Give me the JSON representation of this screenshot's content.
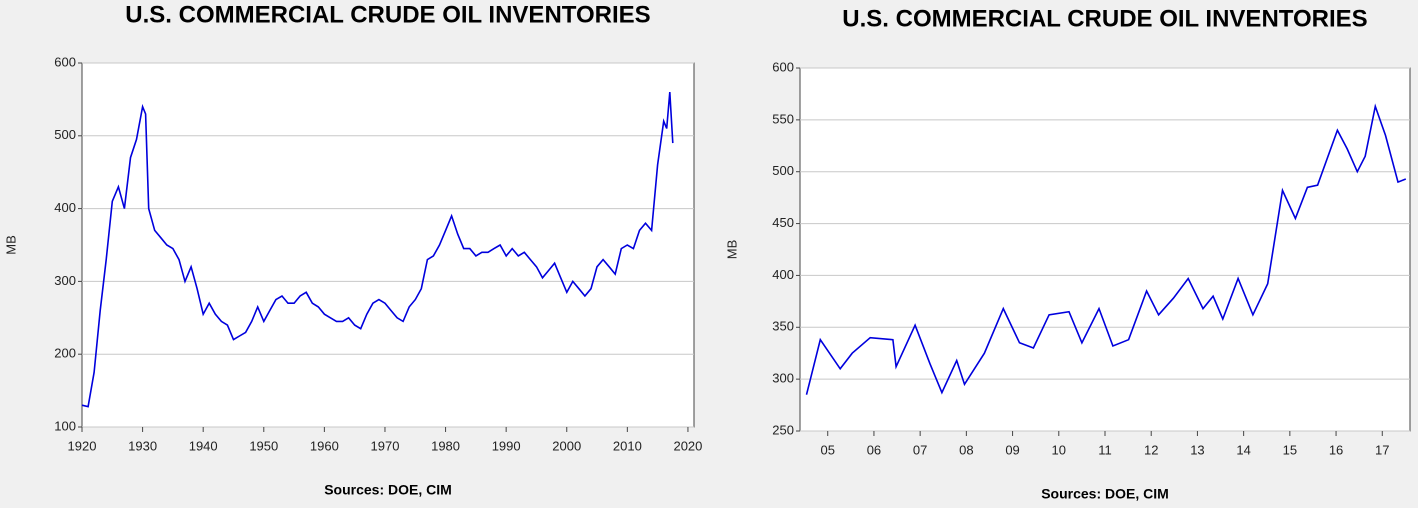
{
  "chart_data": [
    {
      "type": "line",
      "title": "U.S. COMMERCIAL CRUDE OIL INVENTORIES",
      "source": "Sources:  DOE, CIM",
      "ylabel": "MB",
      "color": "#0000dd",
      "grid": true,
      "xlim": [
        1920,
        2021
      ],
      "xticks": [
        1920,
        1930,
        1940,
        1950,
        1960,
        1970,
        1980,
        1990,
        2000,
        2010,
        2020
      ],
      "ylim": [
        100,
        600
      ],
      "yticks": [
        100,
        200,
        300,
        400,
        500,
        600
      ],
      "x": [
        1920,
        1921,
        1922,
        1923,
        1924,
        1925,
        1926,
        1927,
        1928,
        1929,
        1930,
        1930.5,
        1931,
        1932,
        1933,
        1934,
        1935,
        1936,
        1937,
        1938,
        1939,
        1940,
        1941,
        1942,
        1943,
        1944,
        1945,
        1946,
        1947,
        1948,
        1949,
        1950,
        1951,
        1952,
        1953,
        1954,
        1955,
        1956,
        1957,
        1958,
        1959,
        1960,
        1961,
        1962,
        1963,
        1964,
        1965,
        1966,
        1967,
        1968,
        1969,
        1970,
        1971,
        1972,
        1973,
        1974,
        1975,
        1976,
        1977,
        1978,
        1979,
        1980,
        1981,
        1982,
        1983,
        1984,
        1985,
        1986,
        1987,
        1988,
        1989,
        1990,
        1991,
        1992,
        1993,
        1994,
        1995,
        1996,
        1997,
        1998,
        1999,
        2000,
        2001,
        2002,
        2003,
        2004,
        2005,
        2006,
        2007,
        2008,
        2009,
        2010,
        2011,
        2012,
        2013,
        2014,
        2015,
        2016,
        2016.5,
        2017,
        2017.5
      ],
      "values": [
        130,
        128,
        175,
        260,
        330,
        410,
        430,
        400,
        470,
        495,
        540,
        530,
        400,
        370,
        360,
        350,
        345,
        330,
        300,
        320,
        290,
        255,
        270,
        255,
        245,
        240,
        220,
        225,
        230,
        245,
        265,
        245,
        260,
        275,
        280,
        270,
        270,
        280,
        285,
        270,
        265,
        255,
        250,
        245,
        245,
        250,
        240,
        235,
        255,
        270,
        275,
        270,
        260,
        250,
        245,
        265,
        275,
        290,
        330,
        335,
        350,
        370,
        390,
        365,
        345,
        345,
        335,
        340,
        340,
        345,
        350,
        335,
        345,
        335,
        340,
        330,
        320,
        305,
        315,
        325,
        305,
        285,
        300,
        290,
        280,
        290,
        320,
        330,
        320,
        310,
        345,
        350,
        345,
        370,
        380,
        370,
        460,
        520,
        510,
        560,
        490
      ]
    },
    {
      "type": "line",
      "title": "U.S. COMMERCIAL CRUDE OIL INVENTORIES",
      "source": "Sources:  DOE, CIM",
      "ylabel": "MB",
      "color": "#0000dd",
      "grid": true,
      "xlim": [
        2004.9,
        2018.1
      ],
      "xticks": [
        {
          "value": 2005.5,
          "label": "05"
        },
        {
          "value": 2006.5,
          "label": "06"
        },
        {
          "value": 2007.5,
          "label": "07"
        },
        {
          "value": 2008.5,
          "label": "08"
        },
        {
          "value": 2009.5,
          "label": "09"
        },
        {
          "value": 2010.5,
          "label": "10"
        },
        {
          "value": 2011.5,
          "label": "11"
        },
        {
          "value": 2012.5,
          "label": "12"
        },
        {
          "value": 2013.5,
          "label": "13"
        },
        {
          "value": 2014.5,
          "label": "14"
        },
        {
          "value": 2015.5,
          "label": "15"
        },
        {
          "value": 2016.5,
          "label": "16"
        },
        {
          "value": 2017.5,
          "label": "17"
        }
      ],
      "ylim": [
        250,
        600
      ],
      "yticks": [
        250,
        300,
        350,
        400,
        450,
        500,
        550,
        600
      ],
      "x": [
        2005.04,
        2005.34,
        2005.77,
        2006.03,
        2006.42,
        2006.91,
        2006.98,
        2007.39,
        2007.71,
        2007.97,
        2008.29,
        2008.46,
        2008.89,
        2009.3,
        2009.65,
        2009.95,
        2010.29,
        2010.72,
        2011.0,
        2011.37,
        2011.67,
        2012.01,
        2012.4,
        2012.66,
        2012.98,
        2013.3,
        2013.62,
        2013.84,
        2014.05,
        2014.38,
        2014.7,
        2015.02,
        2015.34,
        2015.62,
        2015.88,
        2016.1,
        2016.53,
        2016.74,
        2016.96,
        2017.13,
        2017.35,
        2017.57,
        2017.84,
        2018.01
      ],
      "values": [
        285,
        338,
        310,
        325,
        340,
        338,
        312,
        352,
        315,
        287,
        318,
        295,
        325,
        368,
        335,
        330,
        362,
        365,
        335,
        368,
        332,
        338,
        385,
        362,
        378,
        397,
        368,
        380,
        358,
        397,
        362,
        392,
        482,
        455,
        485,
        487,
        540,
        522,
        500,
        515,
        563,
        535,
        490,
        493
      ]
    }
  ]
}
